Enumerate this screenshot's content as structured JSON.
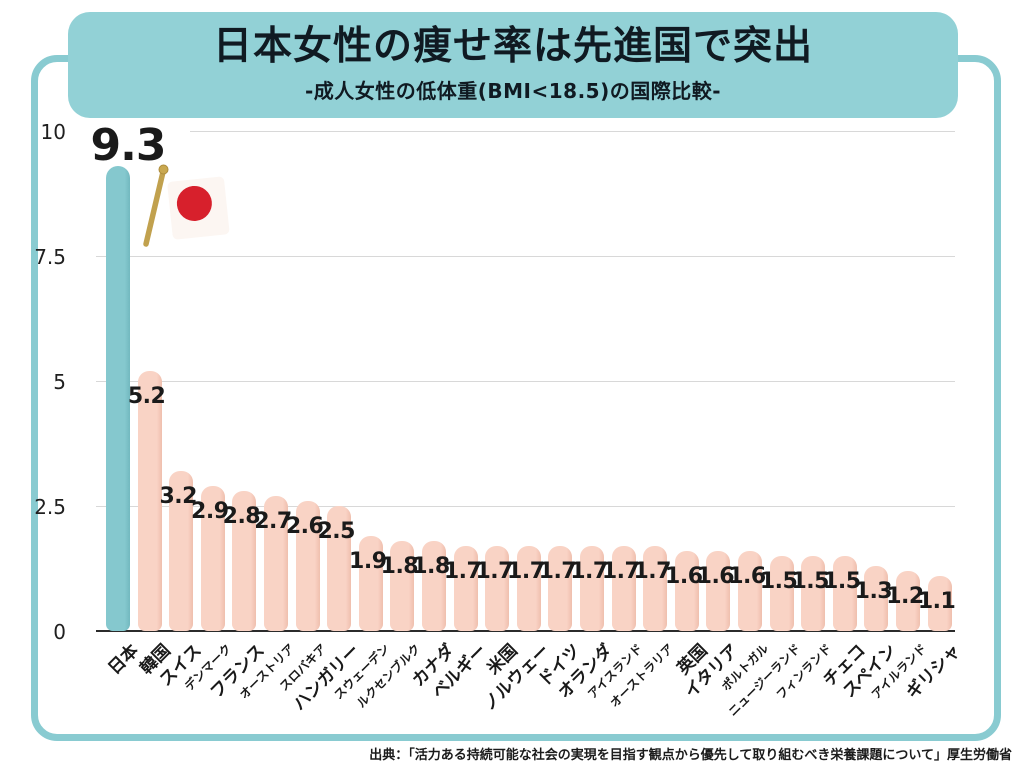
{
  "header": {
    "title": "日本女性の痩せ率は先進国で突出",
    "subtitle": "-成人女性の低体重(BMI<18.5)の国際比較-"
  },
  "footer": {
    "source": "出典：「活力ある持続可能な社会の実現を目指す観点から優先して取り組むべき栄養課題について」厚生労働省"
  },
  "icons": {
    "flag": "japan-flag-icon"
  },
  "colors": {
    "frame_border": "#89cbd1",
    "title_box_bg": "#92d1d6",
    "title_text": "#101a22",
    "highlight_bar": "#85c8ce",
    "default_bar": "#f9d3c5",
    "grid": "#d8d8d8",
    "zero_line": "#2b2b2b",
    "label_text": "#1a1a1a",
    "flag_red": "#d7202c",
    "flag_pole": "#c1a14e"
  },
  "chart_data": {
    "type": "bar",
    "title": "日本女性の痩せ率は先進国で突出",
    "subtitle": "-成人女性の低体重(BMI<18.5)の国際比較-",
    "xlabel": "",
    "ylabel": "",
    "ylim": [
      0,
      10
    ],
    "yticks": [
      0,
      2.5,
      5,
      7.5,
      10
    ],
    "ytick_labels": [
      "0",
      "2.5",
      "5",
      "7.5",
      "10"
    ],
    "grid": true,
    "legend": false,
    "highlight_index": 0,
    "categories": [
      "日本",
      "韓国",
      "スイス",
      "デンマーク",
      "フランス",
      "オーストリア",
      "スロバキア",
      "ハンガリー",
      "スウェーデン",
      "ルクセンブルク",
      "カナダ",
      "ベルギー",
      "米国",
      "ノルウェー",
      "ドイツ",
      "オランダ",
      "アイスランド",
      "オーストラリア",
      "英国",
      "イタリア",
      "ポルトガル",
      "ニュージーランド",
      "フィンランド",
      "チェコ",
      "スペイン",
      "アイルランド",
      "ギリシャ"
    ],
    "values": [
      9.3,
      5.2,
      3.2,
      2.9,
      2.8,
      2.7,
      2.6,
      2.5,
      1.9,
      1.8,
      1.8,
      1.7,
      1.7,
      1.7,
      1.7,
      1.7,
      1.7,
      1.7,
      1.6,
      1.6,
      1.6,
      1.5,
      1.5,
      1.5,
      1.3,
      1.2,
      1.1
    ],
    "value_labels": [
      "9.3",
      "5.2",
      "3.2",
      "2.9",
      "2.8",
      "2.7",
      "2.6",
      "2.5",
      "1.9",
      "1.8",
      "1.8",
      "1.7",
      "1.7",
      "1.7",
      "1.7",
      "1.7",
      "1.7",
      "1.7",
      "1.6",
      "1.6",
      "1.6",
      "1.5",
      "1.5",
      "1.5",
      "1.3",
      "1.2",
      "1.1"
    ],
    "small_label_indices": [
      3,
      5,
      6,
      8,
      9,
      16,
      17,
      20,
      21,
      22,
      25
    ]
  }
}
